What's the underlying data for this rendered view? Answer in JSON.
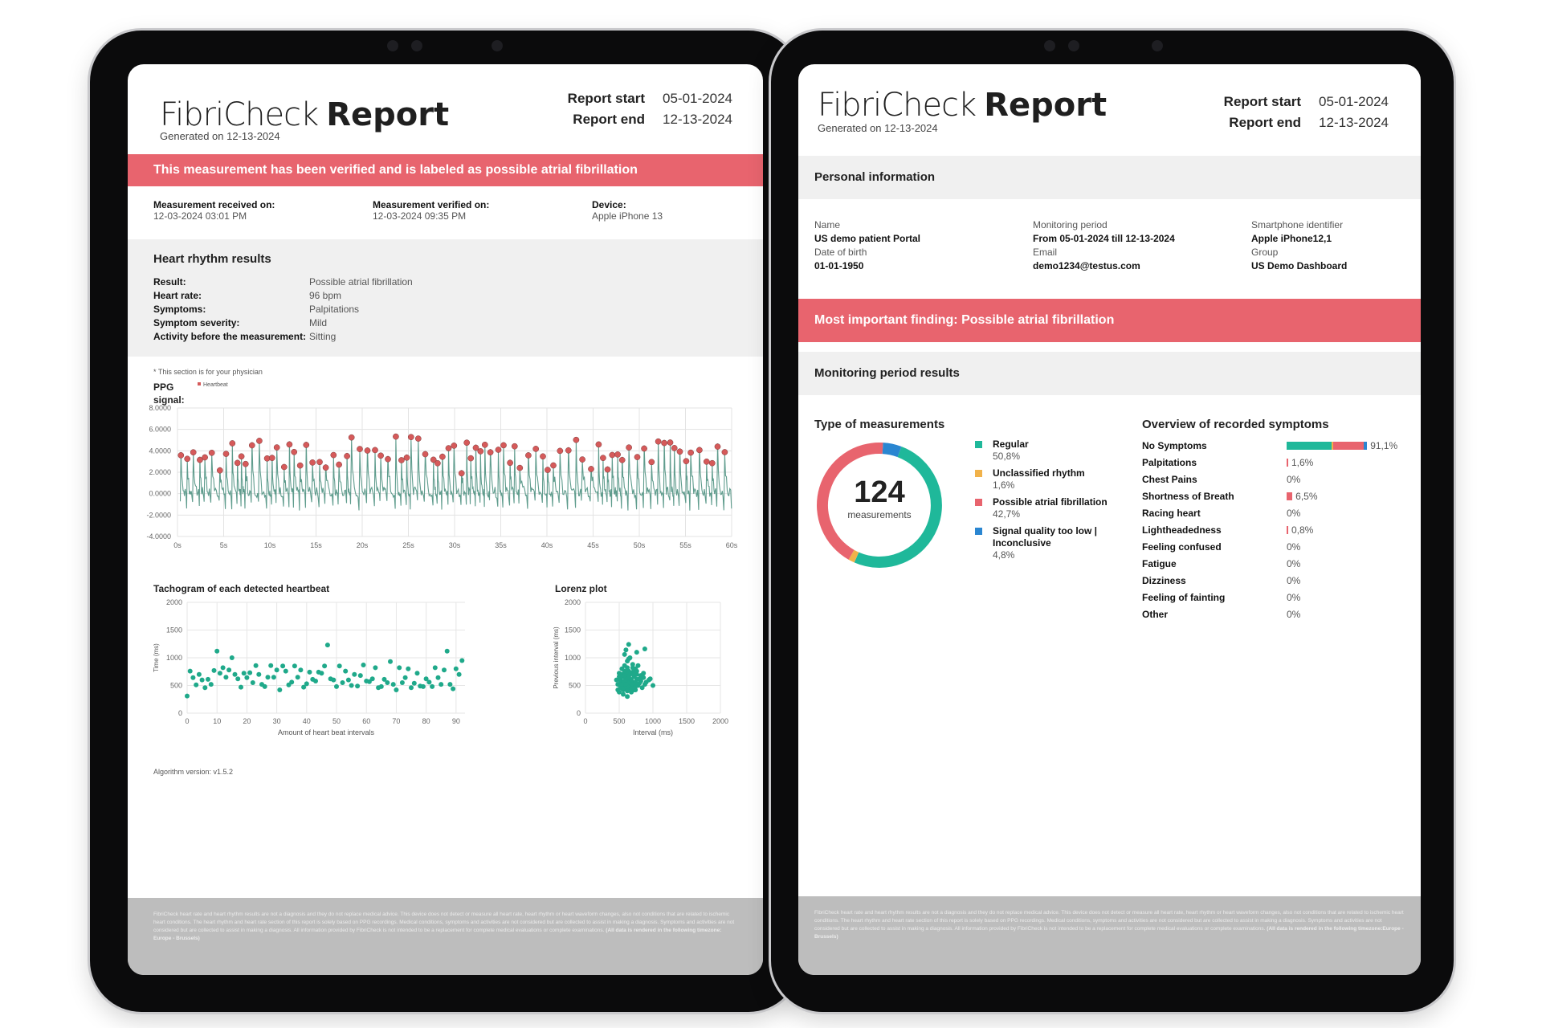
{
  "left": {
    "logo_light": "FibriCheck",
    "logo_bold": "Report",
    "generated": "Generated on 12-13-2024",
    "report_start_label": "Report start",
    "report_start_value": "05-01-2024",
    "report_end_label": "Report end",
    "report_end_value": "12-13-2024",
    "banner": "This measurement has been verified and is labeled as possible atrial fibrillation",
    "received_label": "Measurement received on:",
    "received_value": "12-03-2024 03:01 PM",
    "verified_label": "Measurement verified on:",
    "verified_value": "12-03-2024 09:35 PM",
    "device_label": "Device:",
    "device_value": "Apple iPhone 13",
    "rhythm_title": "Heart rhythm results",
    "rhythm_rows": [
      {
        "label": "Result:",
        "value": "Possible atrial fibrillation"
      },
      {
        "label": "Heart rate:",
        "value": "96 bpm"
      },
      {
        "label": "Symptoms:",
        "value": "Palpitations"
      },
      {
        "label": "Symptom severity:",
        "value": "Mild"
      },
      {
        "label": "Activity before the measurement:",
        "value": "Sitting"
      }
    ],
    "physician_note": "* This section is for your physician",
    "ppg_label_1": "PPG",
    "ppg_label_2": "signal:",
    "algorithm": "Algorithm version: v1.5.2",
    "footer_text": "FibriCheck heart rate and heart rhythm results are not a diagnosis and they do not replace medical advice. This device does not detect or measure all heart rate, heart rhythm or heart waveform changes, also not conditions that are related to ischemic heart conditions. The heart rhythm and heart rate section of this report is solely based on PPG recordings. Medical conditions, symptoms and activities are not considered but are collected to assist in making a diagnosis. Symptoms and activities are not considered but are collected to assist in making a diagnosis. All information provided by FibriCheck is not intended to be a replacement for complete medical evaluations or complete examinations.",
    "footer_bold": "(All data is rendered in the following timezone: Europe - Brussels)"
  },
  "right": {
    "logo_light": "FibriCheck",
    "logo_bold": "Report",
    "generated": "Generated on 12-13-2024",
    "report_start_label": "Report start",
    "report_start_value": "05-01-2024",
    "report_end_label": "Report end",
    "report_end_value": "12-13-2024",
    "personal_title": "Personal information",
    "name_label": "Name",
    "name_value": "US demo patient Portal",
    "dob_label": "Date of birth",
    "dob_value": "01-01-1950",
    "period_label": "Monitoring period",
    "period_value": "From 05-01-2024 till 12-13-2024",
    "email_label": "Email",
    "email_value": "demo1234@testus.com",
    "phone_label": "Smartphone identifier",
    "phone_value": "Apple iPhone12,1",
    "group_label": "Group",
    "group_value": "US Demo Dashboard",
    "finding_banner": "Most important finding: Possible atrial fibrillation",
    "results_title": "Monitoring period results",
    "type_title": "Type of measurements",
    "donut_total": "124",
    "donut_caption": "measurements",
    "legend": [
      {
        "label": "Regular",
        "label2": "",
        "pct": "50,8%",
        "color": "#1fb89a"
      },
      {
        "label": "Unclassified rhythm",
        "label2": "",
        "pct": "1,6%",
        "color": "#f1b24a"
      },
      {
        "label": "Possible atrial fibrillation",
        "label2": "",
        "pct": "42,7%",
        "color": "#e8646e"
      },
      {
        "label": "Signal quality too low |",
        "label2": "Inconclusive",
        "pct": "4,8%",
        "color": "#2a86d1"
      }
    ],
    "symptoms_title": "Overview of recorded symptoms",
    "symptoms": [
      {
        "label": "No Symptoms",
        "pct": "91,1%"
      },
      {
        "label": "Palpitations",
        "pct": "1,6%"
      },
      {
        "label": "Chest Pains",
        "pct": "0%"
      },
      {
        "label": "Shortness of Breath",
        "pct": "6,5%"
      },
      {
        "label": "Racing heart",
        "pct": "0%"
      },
      {
        "label": "Lightheadedness",
        "pct": "0,8%"
      },
      {
        "label": "Feeling confused",
        "pct": "0%"
      },
      {
        "label": "Fatigue",
        "pct": "0%"
      },
      {
        "label": "Dizziness",
        "pct": "0%"
      },
      {
        "label": "Feeling of fainting",
        "pct": "0%"
      },
      {
        "label": "Other",
        "pct": "0%"
      }
    ],
    "footer_text": "FibriCheck heart rate and heart rhythm results are not a diagnosis and they do not replace medical advice. This device does not detect or measure all heart rate, heart rhythm or heart waveform changes, also not conditions that are related to ischemic heart conditions. The heart rhythm and heart rate section of this report is solely based on PPG recordings. Medical conditions, symptoms and activities are not considered but are collected to assist in making a diagnosis. Symptoms and activities are not considered but are collected to assist in making a diagnosis. All information provided by FibriCheck is not intended to be a replacement for complete medical evaluations or complete examinations.",
    "footer_bold": "(All data is rendered in the following timezone:Europe - Brussels)"
  },
  "chart_data": [
    {
      "type": "line",
      "title": "PPG signal",
      "legend": [
        "Heartbeat"
      ],
      "x_ticks": [
        "0s",
        "5s",
        "10s",
        "15s",
        "20s",
        "25s",
        "30s",
        "35s",
        "40s",
        "45s",
        "50s",
        "55s",
        "60s"
      ],
      "y_ticks": [
        "8.0000",
        "6.0000",
        "4.0000",
        "2.0000",
        "0.0000",
        "-2.0000",
        "-4.0000"
      ],
      "ylim": [
        -4,
        8
      ],
      "xlim": [
        0,
        60
      ],
      "series_color": "#5f9c8d",
      "marker_color": "#d55a5a"
    },
    {
      "type": "scatter",
      "title": "Tachogram of each detected heartbeat",
      "xlabel": "Amount of heart beat intervals",
      "ylabel": "Time (ms)",
      "x_ticks": [
        "0",
        "10",
        "20",
        "30",
        "40",
        "50",
        "60",
        "70",
        "80",
        "90"
      ],
      "y_ticks": [
        "2000",
        "1500",
        "1000",
        "500",
        "0"
      ],
      "xlim": [
        0,
        93
      ],
      "ylim": [
        0,
        2000
      ],
      "color": "#1fa98a",
      "values": [
        310,
        760,
        640,
        510,
        700,
        600,
        460,
        610,
        520,
        770,
        1120,
        720,
        820,
        650,
        780,
        1000,
        700,
        620,
        470,
        720,
        640,
        730,
        550,
        860,
        700,
        520,
        480,
        650,
        860,
        650,
        780,
        420,
        850,
        760,
        510,
        560,
        850,
        650,
        780,
        470,
        530,
        740,
        610,
        580,
        740,
        720,
        850,
        1230,
        620,
        600,
        480,
        850,
        550,
        760,
        600,
        500,
        700,
        490,
        680,
        870,
        580,
        570,
        620,
        820,
        460,
        480,
        610,
        550,
        930,
        520,
        420,
        820,
        550,
        640,
        800,
        460,
        540,
        720,
        490,
        480,
        620,
        560,
        480,
        820,
        640,
        520,
        780,
        1120,
        520,
        440,
        800,
        700,
        950
      ],
      "point_color": "#1fa98a"
    },
    {
      "type": "scatter",
      "title": "Lorenz plot",
      "xlabel": "Interval (ms)",
      "ylabel": "Previous interval (ms)",
      "x_ticks": [
        "0",
        "500",
        "1000",
        "1500",
        "2000"
      ],
      "y_ticks": [
        "2000",
        "1500",
        "1000",
        "500",
        "0"
      ],
      "xlim": [
        0,
        2000
      ],
      "ylim": [
        0,
        2000
      ],
      "color": "#1fa98a",
      "points": [
        [
          480,
          420
        ],
        [
          520,
          480
        ],
        [
          560,
          500
        ],
        [
          600,
          460
        ],
        [
          640,
          520
        ],
        [
          700,
          560
        ],
        [
          760,
          610
        ],
        [
          820,
          580
        ],
        [
          880,
          520
        ],
        [
          520,
          600
        ],
        [
          560,
          660
        ],
        [
          600,
          700
        ],
        [
          640,
          760
        ],
        [
          700,
          820
        ],
        [
          760,
          700
        ],
        [
          800,
          620
        ],
        [
          860,
          720
        ],
        [
          940,
          600
        ],
        [
          500,
          720
        ],
        [
          540,
          800
        ],
        [
          580,
          860
        ],
        [
          620,
          940
        ],
        [
          660,
          1000
        ],
        [
          700,
          880
        ],
        [
          480,
          520
        ],
        [
          520,
          560
        ],
        [
          580,
          540
        ],
        [
          620,
          580
        ],
        [
          660,
          620
        ],
        [
          720,
          660
        ],
        [
          780,
          500
        ],
        [
          840,
          460
        ],
        [
          900,
          560
        ],
        [
          960,
          620
        ],
        [
          1000,
          500
        ],
        [
          600,
          1140
        ],
        [
          640,
          1240
        ],
        [
          760,
          1100
        ],
        [
          880,
          1160
        ],
        [
          580,
          1060
        ],
        [
          640,
          980
        ],
        [
          520,
          460
        ],
        [
          560,
          560
        ],
        [
          600,
          620
        ],
        [
          680,
          480
        ],
        [
          740,
          420
        ],
        [
          800,
          540
        ],
        [
          460,
          600
        ],
        [
          500,
          660
        ],
        [
          540,
          700
        ],
        [
          580,
          760
        ],
        [
          620,
          820
        ],
        [
          660,
          700
        ],
        [
          700,
          740
        ],
        [
          740,
          800
        ],
        [
          780,
          860
        ],
        [
          820,
          680
        ],
        [
          860,
          640
        ],
        [
          500,
          380
        ],
        [
          560,
          340
        ],
        [
          620,
          300
        ],
        [
          680,
          380
        ],
        [
          720,
          420
        ],
        [
          540,
          520
        ],
        [
          580,
          580
        ],
        [
          620,
          640
        ],
        [
          660,
          560
        ],
        [
          700,
          520
        ],
        [
          740,
          560
        ],
        [
          600,
          520
        ],
        [
          640,
          460
        ],
        [
          680,
          600
        ],
        [
          720,
          700
        ],
        [
          760,
          760
        ],
        [
          560,
          420
        ],
        [
          620,
          400
        ],
        [
          680,
          440
        ],
        [
          740,
          480
        ],
        [
          520,
          640
        ],
        [
          580,
          680
        ]
      ],
      "point_color": "#1fa98a"
    },
    {
      "type": "pie",
      "title": "Type of measurements",
      "categories": [
        "Regular",
        "Unclassified rhythm",
        "Possible atrial fibrillation",
        "Signal quality too low | Inconclusive"
      ],
      "values": [
        50.8,
        1.6,
        42.7,
        4.8
      ],
      "colors": [
        "#1fb89a",
        "#f1b24a",
        "#e8646e",
        "#2a86d1"
      ]
    },
    {
      "type": "bar",
      "title": "Overview of recorded symptoms",
      "categories": [
        "No Symptoms",
        "Palpitations",
        "Chest Pains",
        "Shortness of Breath",
        "Racing heart",
        "Lightheadedness",
        "Feeling confused",
        "Fatigue",
        "Dizziness",
        "Feeling of fainting",
        "Other"
      ],
      "values": [
        91.1,
        1.6,
        0,
        6.5,
        0,
        0.8,
        0,
        0,
        0,
        0,
        0
      ],
      "xlim": [
        0,
        100
      ],
      "no_symptoms_segments": [
        {
          "value": 50.8,
          "color": "#1fb89a"
        },
        {
          "value": 1.6,
          "color": "#f1b24a"
        },
        {
          "value": 35.0,
          "color": "#e8646e"
        },
        {
          "value": 3.7,
          "color": "#2a86d1"
        }
      ],
      "color": "#e8646e"
    }
  ]
}
